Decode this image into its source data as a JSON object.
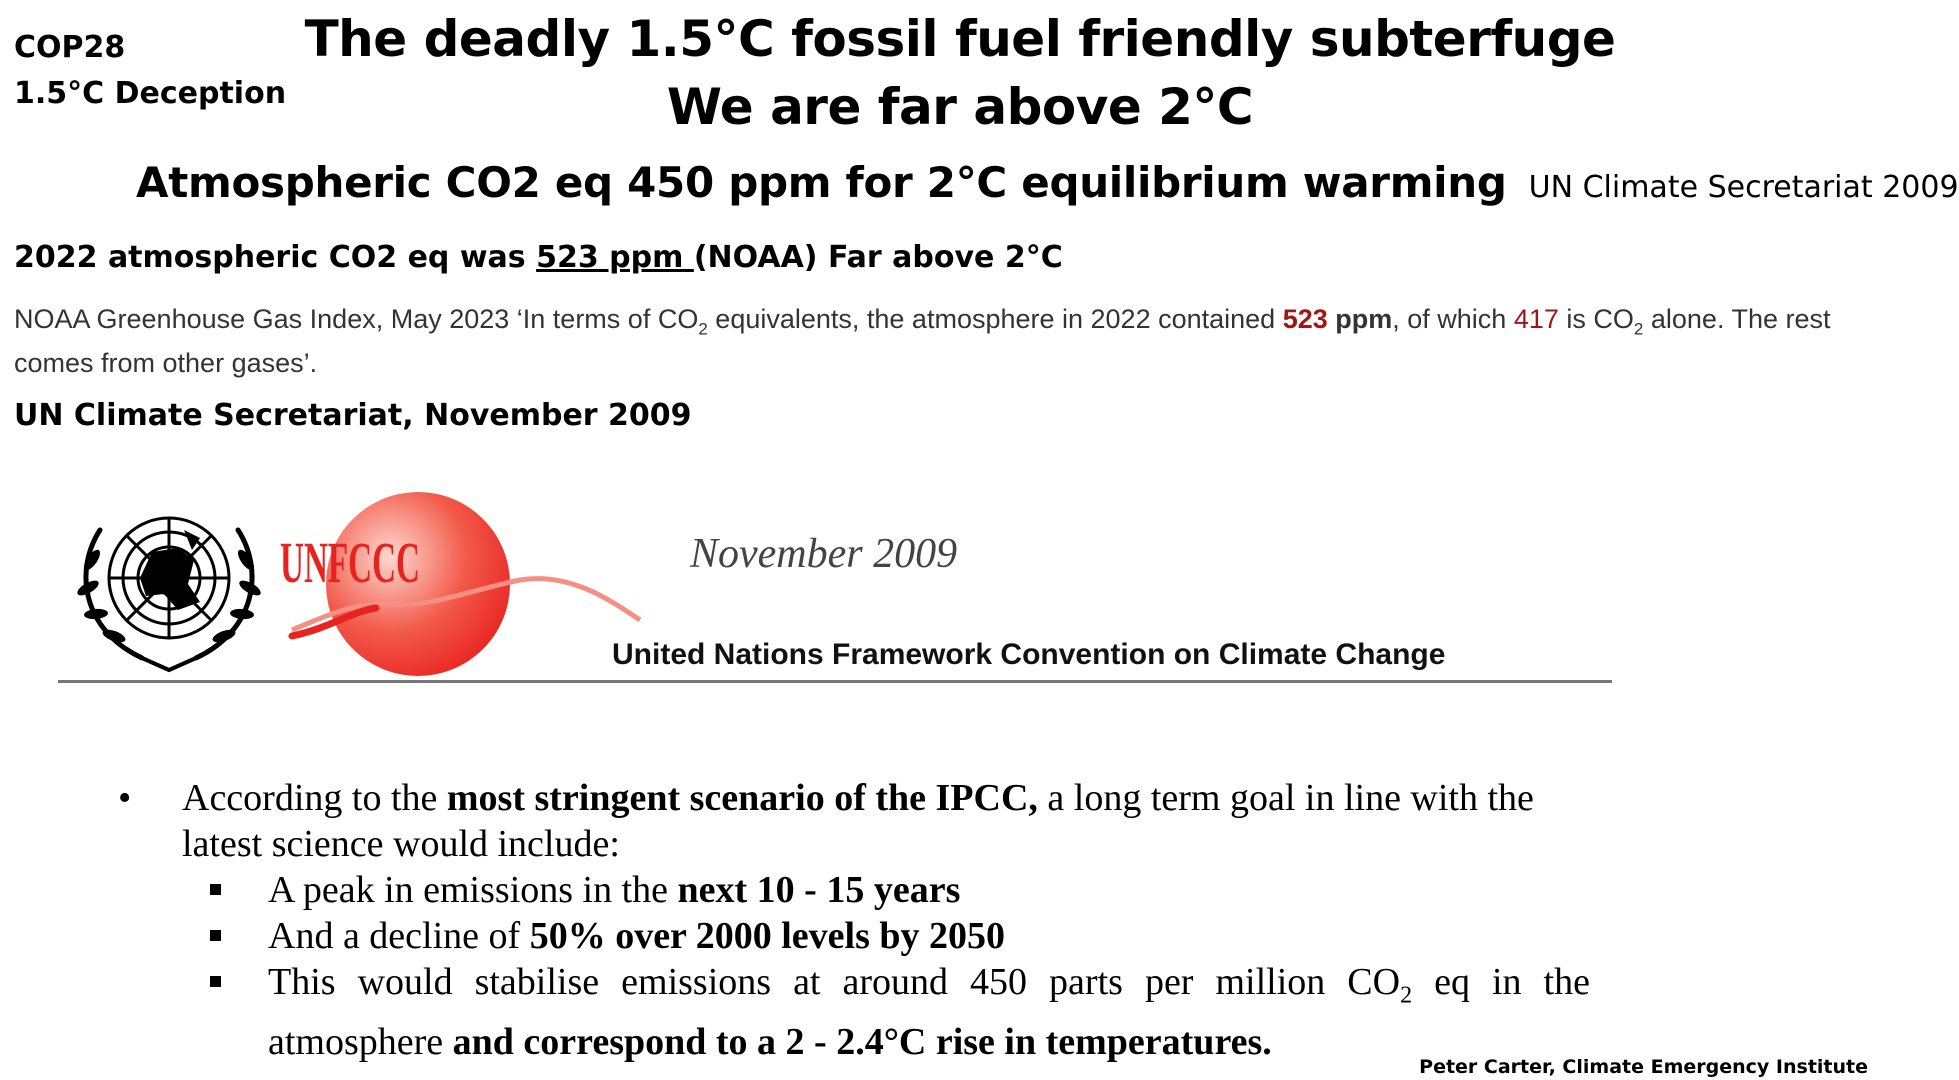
{
  "corner_tags": [
    "COP28",
    "1.5°C Deception"
  ],
  "title": {
    "line1": "The deadly 1.5°C fossil fuel friendly subterfuge",
    "line2": "We are far above 2°C"
  },
  "subtitle": {
    "main": "Atmospheric CO2 eq 450 ppm  for 2°C equilibrium warming",
    "source": "UN Climate Secretariat 2009"
  },
  "claim": {
    "prefix": "2022 atmospheric CO2 eq was ",
    "value": "523 ppm ",
    "suffix": "(NOAA) Far above 2°C"
  },
  "noaa_quote": {
    "t1": "NOAA Greenhouse Gas Index, May 2023 ‘In terms of CO",
    "sub1": "2",
    "t2": " equivalents, the atmosphere in 2022 contained ",
    "v1": "523",
    "unit": " ppm",
    "t3": ", of which ",
    "v2": "417",
    "t4": " is CO",
    "sub2": "2",
    "t5": " alone. The rest comes from other gases’."
  },
  "secretariat_heading": "UN Climate Secretariat, November 2009",
  "letterhead": {
    "logo_text": "UNFCCC",
    "date": "November 2009",
    "organization": "United Nations Framework Convention on Climate Change"
  },
  "excerpt": {
    "bullet_symbol": "•",
    "b_pre": "According to the ",
    "b_bold": "most stringent scenario of the IPCC,",
    "b_post": " a long term goal in line with the latest science would include:",
    "s1_pre": "A peak in emissions in the ",
    "s1_bold": "next 10 - 15 years",
    "s2_pre": "And a decline of ",
    "s2_bold": "50% over 2000 levels by 2050",
    "s3_pre": "This would stabilise emissions at around 450 parts per million CO",
    "s3_sub": "2",
    "s3_mid": " eq in the atmosphere ",
    "s3_bold": "and correspond to a 2 - 2.4°C rise in temperatures."
  },
  "credit": "Peter Carter, Climate Emergency Institute",
  "colors": {
    "highlight_red": "#a31515",
    "unfccc_red": "#e8221f"
  }
}
